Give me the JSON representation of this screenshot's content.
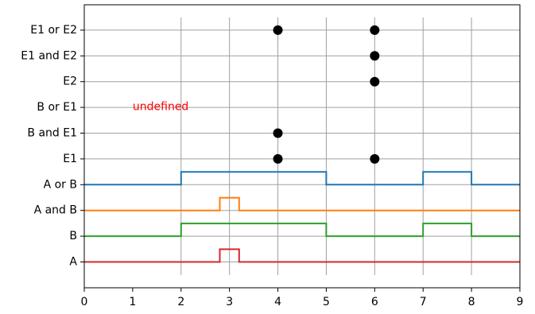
{
  "chart_data": {
    "type": "line",
    "title": "",
    "xlabel": "",
    "ylabel": "",
    "xlim": [
      0,
      9
    ],
    "xticks": [
      0,
      1,
      2,
      3,
      4,
      5,
      6,
      7,
      8,
      9
    ],
    "x_tick_labels": [
      "0",
      "1",
      "2",
      "3",
      "4",
      "5",
      "6",
      "7",
      "8",
      "9"
    ],
    "y_categories": [
      "A",
      "B",
      "A and B",
      "A or B",
      "E1",
      "B and E1",
      "B or E1",
      "E2",
      "E1 and E2",
      "E1 or E2"
    ],
    "vertical_grid_x": [
      2,
      3,
      4,
      5,
      6,
      7,
      8
    ],
    "signals": [
      {
        "row": "A",
        "color": "#d62728",
        "x": [
          0,
          2.8,
          2.8,
          3.2,
          3.2,
          9
        ],
        "level": [
          0,
          0,
          1,
          1,
          0,
          0
        ]
      },
      {
        "row": "B",
        "color": "#2ca02c",
        "x": [
          0,
          2,
          2,
          5,
          5,
          7,
          7,
          8,
          8,
          9
        ],
        "level": [
          0,
          0,
          1,
          1,
          0,
          0,
          1,
          1,
          0,
          0
        ]
      },
      {
        "row": "A and B",
        "color": "#ff7f0e",
        "x": [
          0,
          2.8,
          2.8,
          3.2,
          3.2,
          9
        ],
        "level": [
          0,
          0,
          1,
          1,
          0,
          0
        ]
      },
      {
        "row": "A or B",
        "color": "#1f77b4",
        "x": [
          0,
          2,
          2,
          5,
          5,
          7,
          7,
          8,
          8,
          9
        ],
        "level": [
          0,
          0,
          1,
          1,
          0,
          0,
          1,
          1,
          0,
          0
        ]
      }
    ],
    "events": [
      {
        "row": "E1",
        "x": [
          4,
          6
        ]
      },
      {
        "row": "B and E1",
        "x": [
          4
        ]
      },
      {
        "row": "B or E1",
        "x": []
      },
      {
        "row": "E2",
        "x": [
          6
        ]
      },
      {
        "row": "E1 and E2",
        "x": [
          6
        ]
      },
      {
        "row": "E1 or E2",
        "x": [
          4,
          6
        ]
      }
    ],
    "annotations": [
      {
        "text": "undefined",
        "x": 1,
        "row": "B or E1",
        "color": "#ff0000"
      }
    ]
  }
}
